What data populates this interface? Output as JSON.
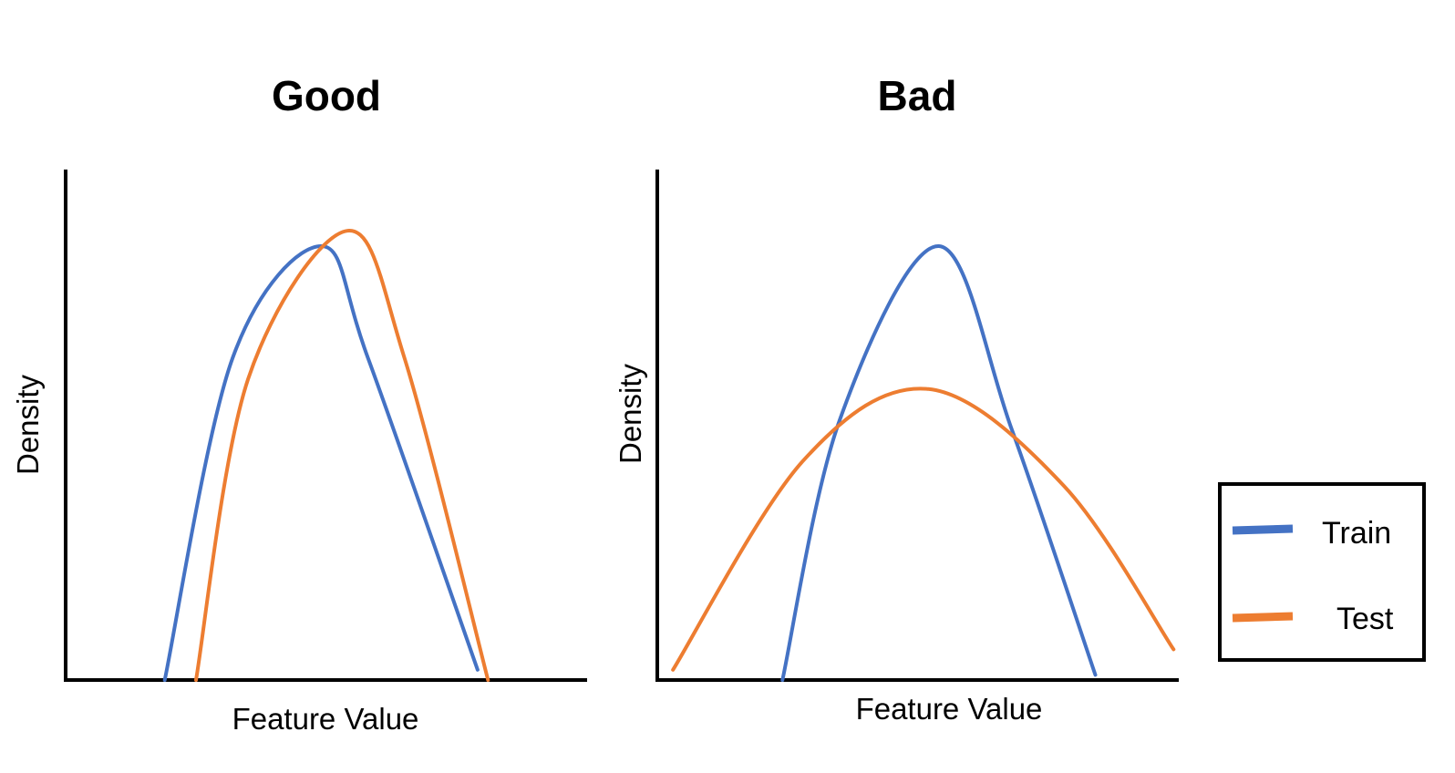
{
  "colors": {
    "train": "#4472C4",
    "test": "#ED7D31",
    "axis": "#000000"
  },
  "legend": {
    "placement": "right",
    "items": [
      {
        "label": "Train",
        "color": "#4472C4"
      },
      {
        "label": "Test",
        "color": "#ED7D31"
      }
    ]
  },
  "chart_data": [
    {
      "type": "line",
      "title": "Good",
      "xlabel": "Feature Value",
      "ylabel": "Density",
      "xlim": [
        0,
        100
      ],
      "ylim": [
        0,
        100
      ],
      "grid": false,
      "ticks": false,
      "series": [
        {
          "name": "Train",
          "color": "#4472C4",
          "x": [
            19,
            32,
            49,
            58,
            79
          ],
          "y": [
            0,
            63,
            85,
            63,
            2
          ]
        },
        {
          "name": "Test",
          "color": "#ED7D31",
          "x": [
            25,
            35,
            54,
            65,
            81
          ],
          "y": [
            0,
            59,
            88,
            63,
            0
          ]
        }
      ]
    },
    {
      "type": "line",
      "title": "Bad",
      "xlabel": "Feature Value",
      "ylabel": "Density",
      "xlim": [
        0,
        100
      ],
      "ylim": [
        0,
        100
      ],
      "grid": false,
      "ticks": false,
      "series": [
        {
          "name": "Train",
          "color": "#4472C4",
          "x": [
            24,
            35,
            54,
            68,
            84
          ],
          "y": [
            0,
            51,
            85,
            49,
            1
          ]
        },
        {
          "name": "Test",
          "color": "#ED7D31",
          "x": [
            3,
            28,
            52,
            78,
            99
          ],
          "y": [
            2,
            43,
            57,
            38,
            6
          ]
        }
      ]
    }
  ]
}
